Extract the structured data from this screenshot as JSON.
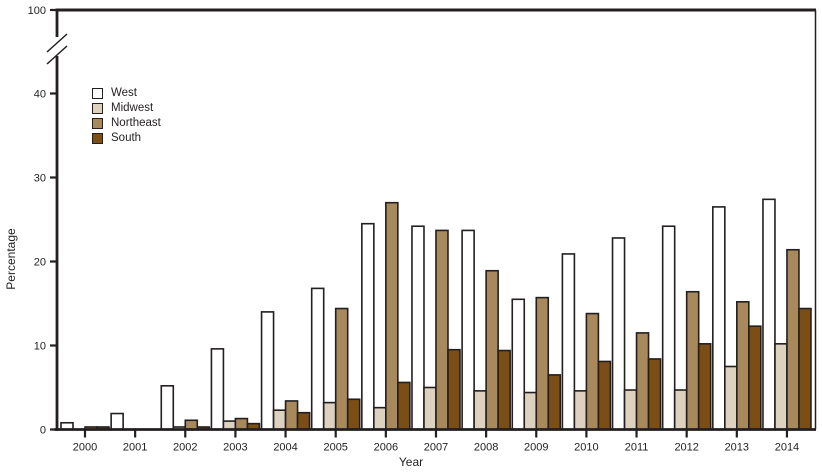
{
  "figure": {
    "ylabel": "Percentage",
    "xlabel": "Year"
  },
  "chart_data": {
    "type": "bar",
    "title": "",
    "xlabel": "Year",
    "ylabel": "Percentage",
    "grid": false,
    "legend_position": "upper-left-inside",
    "bar_outline_color": "#231f20",
    "categories": [
      "2000",
      "2001",
      "2002",
      "2003",
      "2004",
      "2005",
      "2006",
      "2007",
      "2008",
      "2009",
      "2010",
      "2011",
      "2012",
      "2013",
      "2014"
    ],
    "series": [
      {
        "name": "West",
        "color": "#ffffff",
        "values": [
          0.8,
          1.9,
          5.2,
          9.6,
          14.0,
          16.8,
          24.5,
          24.2,
          23.7,
          15.5,
          20.9,
          22.8,
          24.2,
          26.5,
          27.4
        ]
      },
      {
        "name": "Midwest",
        "color": "#ddd1c0",
        "values": [
          0,
          0,
          0.3,
          1.0,
          2.3,
          3.2,
          2.6,
          5.0,
          4.6,
          4.4,
          4.6,
          4.7,
          4.7,
          7.5,
          10.2
        ]
      },
      {
        "name": "Northeast",
        "color": "#a8895c",
        "values": [
          0.3,
          0,
          1.1,
          1.3,
          3.4,
          14.4,
          27.0,
          23.7,
          18.9,
          15.7,
          13.8,
          11.5,
          16.4,
          15.2,
          21.4
        ]
      },
      {
        "name": "South",
        "color": "#7a4e14",
        "values": [
          0.3,
          0,
          0.3,
          0.7,
          2.0,
          3.6,
          5.6,
          9.5,
          9.4,
          6.5,
          8.1,
          8.4,
          10.2,
          12.3,
          14.4
        ]
      }
    ],
    "y_axis": {
      "ticks": [
        0,
        10,
        20,
        30,
        40
      ],
      "top_label": "100",
      "break_between": [
        40,
        100
      ]
    }
  }
}
